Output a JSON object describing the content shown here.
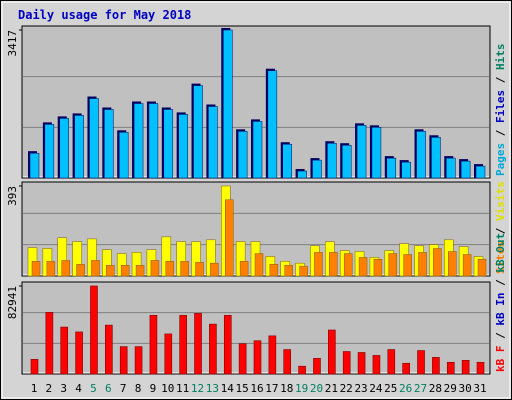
{
  "chart_data": [
    {
      "type": "bar",
      "title": "Daily usage for May 2018",
      "categories": [
        "1",
        "2",
        "3",
        "4",
        "5",
        "6",
        "7",
        "8",
        "9",
        "10",
        "11",
        "12",
        "13",
        "14",
        "15",
        "16",
        "17",
        "18",
        "19",
        "20",
        "21",
        "22",
        "23",
        "24",
        "25",
        "26",
        "27",
        "28",
        "29",
        "30",
        "31"
      ],
      "category_colors": [
        "#000000",
        "#000000",
        "#000000",
        "#000000",
        "#008060",
        "#008060",
        "#000000",
        "#000000",
        "#000000",
        "#000000",
        "#000000",
        "#008060",
        "#008060",
        "#000000",
        "#000000",
        "#000000",
        "#000000",
        "#000000",
        "#008060",
        "#008060",
        "#000000",
        "#000000",
        "#000000",
        "#000000",
        "#000000",
        "#008060",
        "#008060",
        "#000000",
        "#000000",
        "#000000",
        "#000000"
      ],
      "legend": [
        {
          "name": "Pages",
          "color": "#00a8d8"
        },
        {
          "name": "Files",
          "color": "#0000c0"
        },
        {
          "name": "Hits",
          "color": "#008060"
        }
      ],
      "series": [
        {
          "color": "#00c0ff",
          "values": [
            573,
            1238,
            1376,
            1445,
            1835,
            1582,
            1055,
            1720,
            1720,
            1582,
            1468,
            2133,
            1651,
            3417,
            1078,
            1307,
            2477,
            780,
            161,
            413,
            803,
            757,
            1216,
            1170,
            459,
            367,
            1078,
            940,
            459,
            390,
            275
          ]
        }
      ],
      "ylim": [
        0,
        3417
      ],
      "yticks": [
        3417
      ]
    },
    {
      "type": "bar",
      "legend": [
        {
          "name": "Sites",
          "color": "#ff8000"
        },
        {
          "name": "Visits",
          "color": "#e0e000"
        }
      ],
      "series": [
        {
          "color": "#ffff00",
          "values": [
            124,
            120,
            167,
            150,
            162,
            115,
            98,
            103,
            115,
            171,
            150,
            150,
            158,
            393,
            150,
            150,
            85,
            64,
            56,
            132,
            150,
            111,
            107,
            81,
            111,
            141,
            132,
            137,
            158,
            128,
            85
          ]
        },
        {
          "color": "#ff8000",
          "values": [
            64,
            64,
            68,
            51,
            68,
            47,
            47,
            47,
            68,
            64,
            64,
            60,
            56,
            333,
            64,
            98,
            51,
            47,
            43,
            103,
            103,
            98,
            81,
            73,
            98,
            94,
            103,
            120,
            107,
            94,
            73
          ]
        }
      ],
      "ylim": [
        0,
        393
      ],
      "yticks": [
        393
      ]
    },
    {
      "type": "bar",
      "legend": [
        {
          "name": "kB F",
          "color": "#ff0000"
        },
        {
          "name": "kB In",
          "color": "#0000c0"
        },
        {
          "name": "kB Out",
          "color": "#008060"
        }
      ],
      "series": [
        {
          "color": "#ff0000",
          "values": [
            13824,
            58059,
            44235,
            39626,
            82941,
            46078,
            25804,
            25804,
            55294,
            37784,
            55294,
            57136,
            47000,
            55294,
            28569,
            31333,
            35941,
            23039,
            7373,
            14745,
            41470,
            21196,
            20274,
            17510,
            23039,
            10137,
            22118,
            15666,
            11059,
            12902,
            11059
          ]
        }
      ],
      "ylim": [
        0,
        82941
      ],
      "yticks": [
        82941
      ]
    }
  ]
}
